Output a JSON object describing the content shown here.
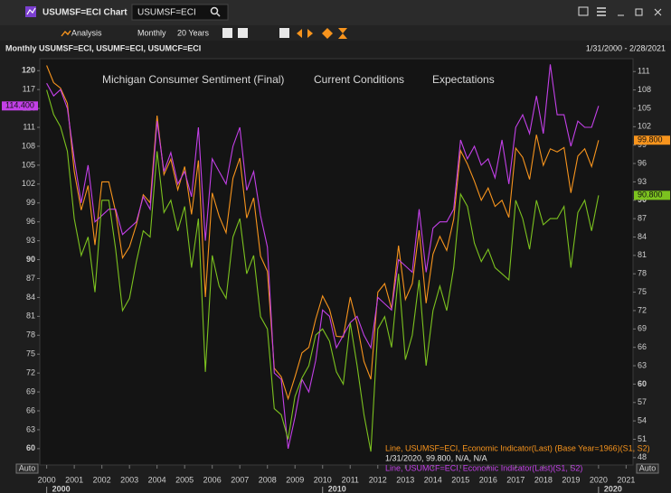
{
  "window": {
    "title": "USUMSF=ECI Chart",
    "search": "USUMSF=ECI"
  },
  "toolbar": {
    "analysis": "Analysis",
    "interval": "Monthly",
    "range": "20 Years"
  },
  "chart_data": {
    "type": "line",
    "title": "Monthly USUMSF=ECI, USUMF=ECI, USUMCF=ECI",
    "date_range": "1/31/2000 - 2/28/2021",
    "x": [
      2000,
      2000.25,
      2000.5,
      2000.75,
      2001,
      2001.25,
      2001.5,
      2001.75,
      2002,
      2002.25,
      2002.5,
      2002.75,
      2003,
      2003.25,
      2003.5,
      2003.75,
      2004,
      2004.25,
      2004.5,
      2004.75,
      2005,
      2005.25,
      2005.5,
      2005.75,
      2006,
      2006.25,
      2006.5,
      2006.75,
      2007,
      2007.25,
      2007.5,
      2007.75,
      2008,
      2008.25,
      2008.5,
      2008.75,
      2009,
      2009.25,
      2009.5,
      2009.75,
      2010,
      2010.25,
      2010.5,
      2010.75,
      2011,
      2011.25,
      2011.5,
      2011.75,
      2012,
      2012.25,
      2012.5,
      2012.75,
      2013,
      2013.25,
      2013.5,
      2013.75,
      2014,
      2014.25,
      2014.5,
      2014.75,
      2015,
      2015.25,
      2015.5,
      2015.75,
      2016,
      2016.25,
      2016.5,
      2016.75,
      2017,
      2017.25,
      2017.5,
      2017.75,
      2018,
      2018.25,
      2018.5,
      2018.75,
      2019,
      2019.25,
      2019.5,
      2019.75,
      2020
    ],
    "xlim": [
      1999.75,
      2021.25
    ],
    "xticks": [
      2000,
      2001,
      2002,
      2003,
      2004,
      2005,
      2006,
      2007,
      2008,
      2009,
      2010,
      2011,
      2012,
      2013,
      2014,
      2015,
      2016,
      2017,
      2018,
      2019,
      2020,
      2021
    ],
    "xticks_major": [
      2000,
      2010,
      2020
    ],
    "ylim": [
      57.4,
      121.9
    ],
    "yticks": [
      60,
      63,
      66,
      69,
      72,
      75,
      78,
      81,
      84,
      87,
      90,
      93,
      96,
      99,
      102,
      105,
      108,
      111,
      114,
      117,
      120
    ],
    "y2lim": [
      46.8,
      113.1
    ],
    "y2ticks": [
      48,
      51,
      54,
      57,
      60,
      63,
      66,
      69,
      72,
      75,
      78,
      81,
      84,
      87,
      90,
      93,
      96,
      99,
      102,
      105,
      108,
      111
    ],
    "grid": false,
    "scale_mode": "Auto",
    "series": [
      {
        "name": "Michigan Consumer Sentiment (Final)",
        "color": "#f7941d",
        "axis": "y2",
        "end_label": "99.800",
        "values": [
          112,
          109.2,
          108.3,
          105.8,
          94.7,
          88.4,
          92.4,
          82.7,
          93,
          93,
          88.1,
          80.6,
          82.4,
          86,
          90.9,
          89.6,
          103.8,
          94.2,
          96.7,
          91.7,
          95.5,
          87.7,
          96.5,
          74.2,
          91.2,
          87.4,
          84.7,
          93.6,
          96.9,
          87.1,
          90.4,
          80.9,
          78.4,
          62.6,
          61.2,
          57.6,
          61.2,
          65.1,
          66,
          70.6,
          74.4,
          72.2,
          67.8,
          67.7,
          74.2,
          69.8,
          63.7,
          60.8,
          75,
          76.4,
          72.3,
          82.6,
          73.8,
          76.4,
          85.1,
          73.2,
          81.2,
          84.1,
          81.8,
          86.9,
          98.1,
          95.9,
          93.1,
          90,
          92,
          89,
          90,
          87.2,
          98.5,
          97,
          93.4,
          100.7,
          95.7,
          98.4,
          97.9,
          98.6,
          91.2,
          97.2,
          98.4,
          95.5,
          99.8
        ]
      },
      {
        "name": "Current Conditions",
        "color": "#c340e8",
        "axis": "y",
        "end_label": "114.400",
        "values": [
          118,
          116,
          117,
          114,
          106,
          99,
          105,
          96,
          97,
          98,
          98,
          94,
          95,
          96,
          100,
          98,
          112,
          104,
          107,
          102,
          104,
          100,
          111,
          93,
          106,
          104,
          102,
          108,
          111,
          101,
          104,
          97,
          92,
          72,
          71,
          60,
          65,
          71,
          69,
          74,
          82,
          81,
          76,
          78,
          80,
          81,
          78,
          76,
          84,
          83,
          82,
          90,
          89,
          88,
          98,
          88,
          95,
          96,
          96,
          98,
          109,
          106,
          108,
          105,
          106,
          103,
          109,
          102,
          111,
          113,
          110,
          116,
          110,
          121,
          113,
          113,
          108,
          112,
          111,
          111,
          114.4
        ]
      },
      {
        "name": "Expectations",
        "color": "#7cc21f",
        "axis": "y2",
        "end_label": "90.800",
        "values": [
          108,
          104,
          102,
          98,
          87,
          81,
          84,
          75,
          90,
          90,
          82,
          72,
          74,
          80,
          85,
          84,
          98,
          88,
          90,
          85,
          89,
          79,
          87,
          62,
          81,
          76,
          74,
          84,
          87,
          78,
          81,
          71,
          69,
          56,
          55,
          51,
          58,
          61,
          63,
          68,
          69,
          67,
          62,
          60,
          70,
          63,
          55,
          49,
          69,
          71,
          66,
          78,
          64,
          68,
          77,
          63,
          72,
          76,
          72,
          79,
          91,
          89,
          83,
          80,
          82,
          79,
          78,
          77,
          90,
          87,
          82,
          90,
          86,
          87,
          87,
          89,
          79,
          88,
          90,
          85,
          90.8
        ]
      }
    ],
    "annotations": [
      "Line, USUMSF=ECI, Economic Indicator(Last) (Base Year=1966)(S1, S2)",
      "1/31/2020, 99.800, N/A, N/A",
      "Line, USUMCF=ECI, Economic Indicator(Last)(S1, S2)"
    ]
  }
}
